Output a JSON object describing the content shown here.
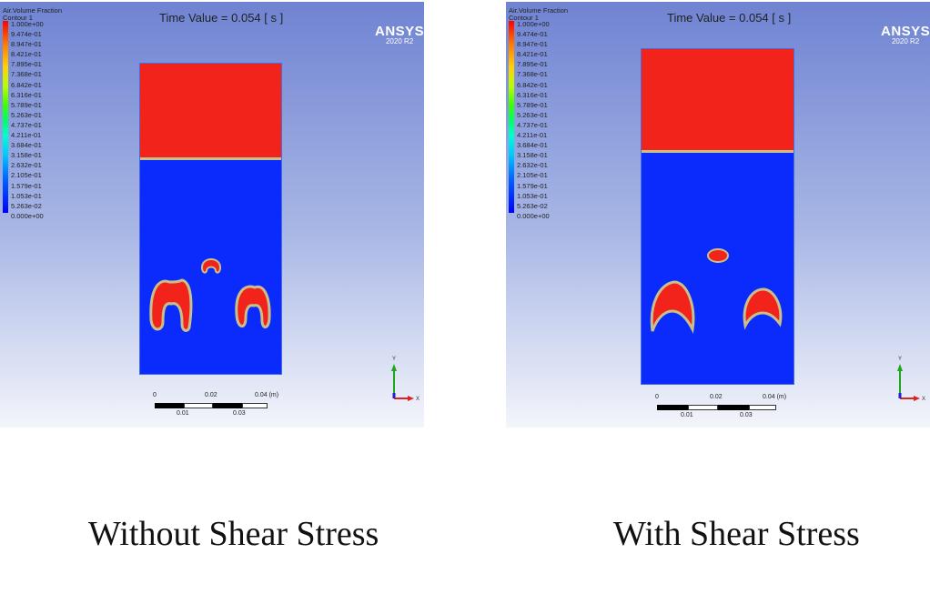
{
  "panels": [
    {
      "legend_title": "Air.Volume Fraction",
      "legend_subtitle": "Contour 1",
      "ticks": [
        "1.000e+00",
        "9.474e-01",
        "8.947e-01",
        "8.421e-01",
        "7.895e-01",
        "7.368e-01",
        "6.842e-01",
        "6.316e-01",
        "5.789e-01",
        "5.263e-01",
        "4.737e-01",
        "4.211e-01",
        "3.684e-01",
        "3.158e-01",
        "2.632e-01",
        "2.105e-01",
        "1.579e-01",
        "1.053e-01",
        "5.263e-02",
        "0.000e+00"
      ],
      "time_value": "Time Value = 0.054 [ s ]",
      "brand_name": "ANSYS",
      "brand_version": "2020 R2",
      "scale_labels_top": [
        "0",
        "0.02",
        "0.04 (m)"
      ],
      "scale_labels_bottom": [
        "0.01",
        "0.03"
      ],
      "axis_labels": {
        "y": "Y",
        "x": "X"
      }
    },
    {
      "legend_title": "Air.Volume Fraction",
      "legend_subtitle": "Contour 1",
      "ticks": [
        "1.000e+00",
        "9.474e-01",
        "8.947e-01",
        "8.421e-01",
        "7.895e-01",
        "7.368e-01",
        "6.842e-01",
        "6.316e-01",
        "5.789e-01",
        "5.263e-01",
        "4.737e-01",
        "4.211e-01",
        "3.684e-01",
        "3.158e-01",
        "2.632e-01",
        "2.105e-01",
        "1.579e-01",
        "1.053e-01",
        "5.263e-02",
        "0.000e+00"
      ],
      "time_value": "Time Value = 0.054 [ s ]",
      "brand_name": "ANSYS",
      "brand_version": "2020 R2",
      "scale_labels_top": [
        "0",
        "0.02",
        "0.04 (m)"
      ],
      "scale_labels_bottom": [
        "0.01",
        "0.03"
      ],
      "axis_labels": {
        "y": "Y",
        "x": "X"
      }
    }
  ],
  "captions": [
    "Without Shear Stress",
    "With Shear Stress"
  ],
  "colors": {
    "water": "#0a2bfb",
    "air": "#f2231a",
    "interface": "#c8c08a"
  }
}
